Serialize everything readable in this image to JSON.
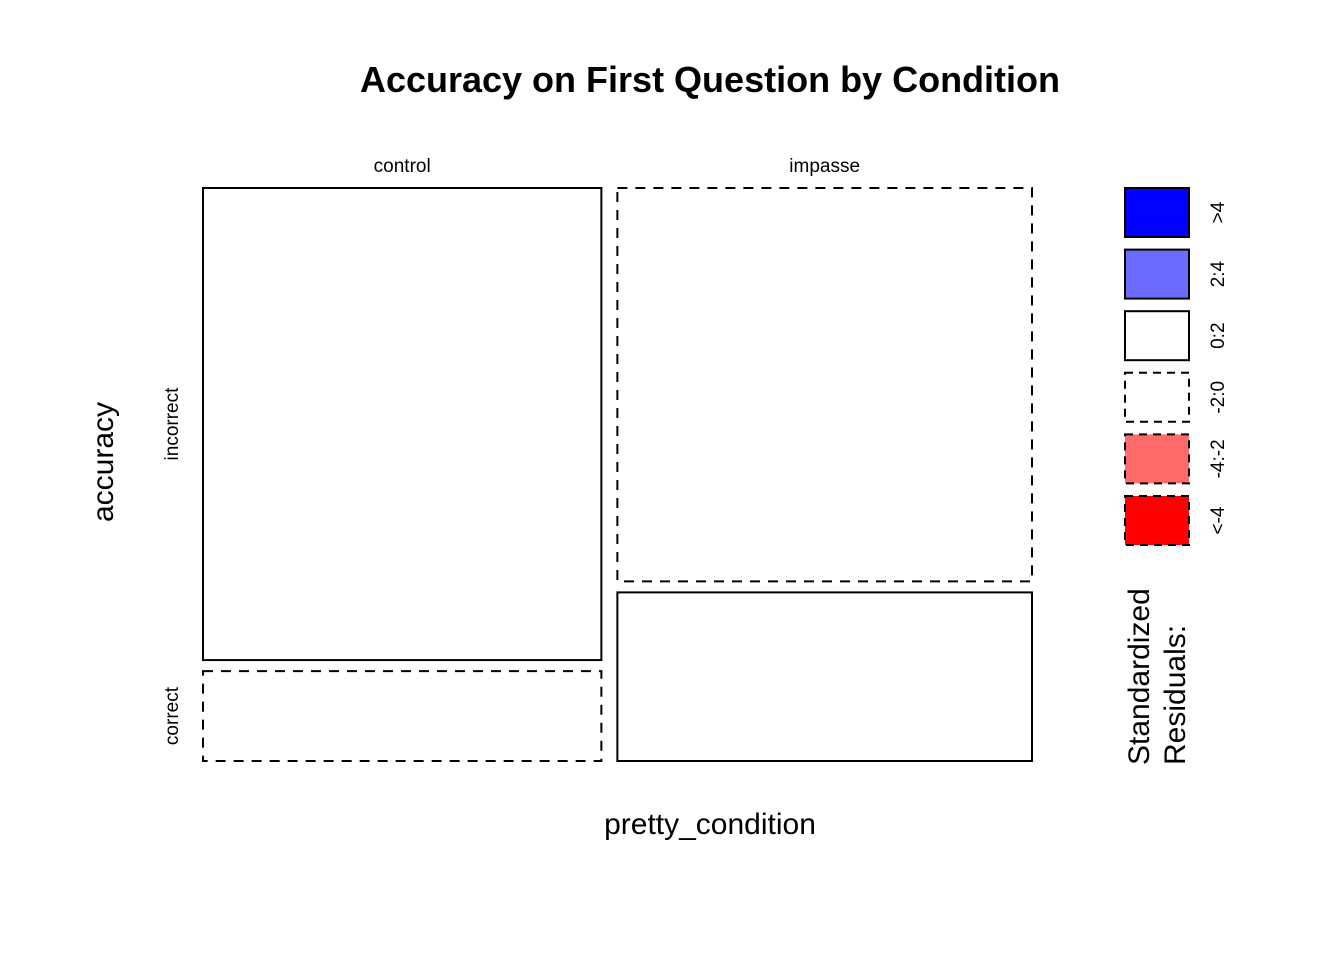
{
  "chart_data": {
    "type": "mosaic",
    "title": "Accuracy on First Question by Condition",
    "xlabel": "pretty_condition",
    "ylabel": "accuracy",
    "x_categories": [
      "control",
      "impasse"
    ],
    "y_categories": [
      "incorrect",
      "correct"
    ],
    "column_proportions": [
      0.49,
      0.51
    ],
    "cells": [
      {
        "x": "control",
        "y": "incorrect",
        "proportion_in_column": 0.84,
        "residual_bin": "0:2"
      },
      {
        "x": "control",
        "y": "correct",
        "proportion_in_column": 0.16,
        "residual_bin": "-2:0"
      },
      {
        "x": "impasse",
        "y": "incorrect",
        "proportion_in_column": 0.7,
        "residual_bin": "-2:0"
      },
      {
        "x": "impasse",
        "y": "correct",
        "proportion_in_column": 0.3,
        "residual_bin": "0:2"
      }
    ],
    "legend": {
      "title": "Standardized Residuals:",
      "title_lines": [
        "Standardized",
        "Residuals:"
      ],
      "placement": "right",
      "bins": [
        {
          "label": ">4",
          "color": "#0000ff",
          "dashed": false
        },
        {
          "label": "2:4",
          "color": "#6b6bff",
          "dashed": false
        },
        {
          "label": "0:2",
          "color": "#ffffff",
          "dashed": false
        },
        {
          "label": "-2:0",
          "color": "#ffffff",
          "dashed": true
        },
        {
          "label": "-4:-2",
          "color": "#ff6b6b",
          "dashed": true
        },
        {
          "label": "<-4",
          "color": "#ff0000",
          "dashed": true
        }
      ]
    }
  }
}
